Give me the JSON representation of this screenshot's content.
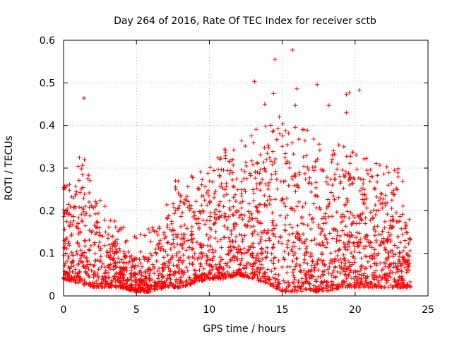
{
  "chart_data": {
    "type": "scatter",
    "title": "Day 264 of 2016, Rate Of TEC Index for receiver sctb",
    "xlabel": "GPS time / hours",
    "ylabel": "ROTI / TECUs",
    "xlim": [
      0,
      25
    ],
    "ylim": [
      0,
      0.6
    ],
    "x_ticks": [
      0,
      5,
      10,
      15,
      20,
      25
    ],
    "x_tick_labels": [
      "0",
      "5",
      "10",
      "15",
      "20",
      "25"
    ],
    "y_ticks": [
      0,
      0.1,
      0.2,
      0.3,
      0.4,
      0.5,
      0.6
    ],
    "y_tick_labels": [
      "0",
      "0.1",
      "0.2",
      "0.3",
      "0.4",
      "0.5",
      "0.6"
    ],
    "grid": true,
    "marker": "plus",
    "color": "#ff0000",
    "series": [
      {
        "name": "ROTI",
        "envelope": {
          "hours": [
            0,
            1,
            2,
            3,
            4,
            5,
            6,
            7,
            8,
            9,
            10,
            11,
            12,
            13,
            14,
            15,
            16,
            17,
            18,
            19,
            20,
            21,
            22,
            23,
            23.8
          ],
          "typical_upper": [
            0.2,
            0.27,
            0.25,
            0.16,
            0.11,
            0.09,
            0.1,
            0.16,
            0.24,
            0.22,
            0.26,
            0.3,
            0.3,
            0.33,
            0.34,
            0.35,
            0.34,
            0.33,
            0.31,
            0.3,
            0.28,
            0.27,
            0.25,
            0.24,
            0.16
          ],
          "typical_lower": [
            0.04,
            0.03,
            0.02,
            0.02,
            0.02,
            0.01,
            0.01,
            0.02,
            0.02,
            0.03,
            0.04,
            0.04,
            0.05,
            0.04,
            0.03,
            0.01,
            0.01,
            0.01,
            0.01,
            0.02,
            0.02,
            0.02,
            0.02,
            0.02,
            0.02
          ]
        },
        "outliers": [
          {
            "x": 1.4,
            "y": 0.464
          },
          {
            "x": 13.1,
            "y": 0.503
          },
          {
            "x": 14.5,
            "y": 0.555
          },
          {
            "x": 15.7,
            "y": 0.577
          },
          {
            "x": 16.0,
            "y": 0.486
          },
          {
            "x": 15.9,
            "y": 0.447
          },
          {
            "x": 17.4,
            "y": 0.496
          },
          {
            "x": 18.2,
            "y": 0.447
          },
          {
            "x": 19.4,
            "y": 0.473
          },
          {
            "x": 19.6,
            "y": 0.477
          },
          {
            "x": 20.3,
            "y": 0.483
          },
          {
            "x": 19.4,
            "y": 0.43
          },
          {
            "x": 14.4,
            "y": 0.475
          },
          {
            "x": 14.8,
            "y": 0.42
          },
          {
            "x": 13.8,
            "y": 0.45
          }
        ]
      }
    ]
  }
}
